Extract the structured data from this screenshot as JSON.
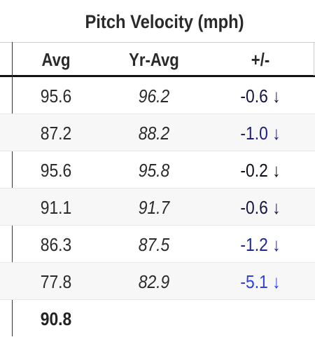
{
  "header": {
    "title": "Pitch Velocity (mph)"
  },
  "table": {
    "columns": [
      "Avg",
      "Yr-Avg",
      "+/-"
    ],
    "rows": [
      {
        "avg": "95.6",
        "yr_avg": "96.2",
        "diff": "-0.6",
        "arrow": "↓",
        "color": "#15153f"
      },
      {
        "avg": "87.2",
        "yr_avg": "88.2",
        "diff": "-1.0",
        "arrow": "↓",
        "color": "#1c1f7a"
      },
      {
        "avg": "95.6",
        "yr_avg": "95.8",
        "diff": "-0.2",
        "arrow": "↓",
        "color": "#0e0e1e"
      },
      {
        "avg": "91.1",
        "yr_avg": "91.7",
        "diff": "-0.6",
        "arrow": "↓",
        "color": "#15153f"
      },
      {
        "avg": "86.3",
        "yr_avg": "87.5",
        "diff": "-1.2",
        "arrow": "↓",
        "color": "#1f2790"
      },
      {
        "avg": "77.8",
        "yr_avg": "82.9",
        "diff": "-5.1",
        "arrow": "↓",
        "color": "#2d3fe0"
      }
    ],
    "summary": {
      "avg": "90.8"
    }
  }
}
